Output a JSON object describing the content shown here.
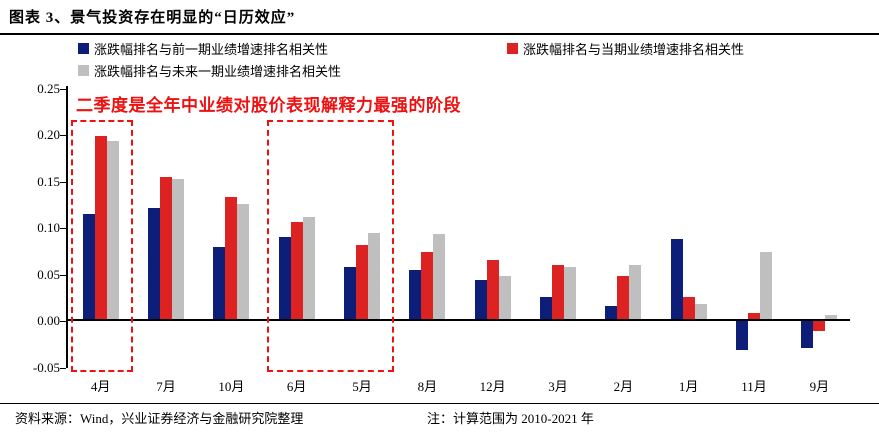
{
  "header": {
    "title": "图表 3、景气投资存在明显的“日历效应”"
  },
  "annotation": {
    "text": "二季度是全年中业绩对股价表现解释力最强的阶段",
    "color": "#ee1111"
  },
  "chart_data": {
    "type": "bar",
    "title": "景气投资存在明显的“日历效应”",
    "categories": [
      "4月",
      "7月",
      "10月",
      "6月",
      "5月",
      "8月",
      "12月",
      "3月",
      "2月",
      "1月",
      "11月",
      "9月"
    ],
    "series": [
      {
        "name": "涨跌幅排名与前一期业绩增速排名相关性",
        "color": "#0d1e78",
        "values": [
          0.115,
          0.121,
          0.08,
          0.09,
          0.058,
          0.055,
          0.044,
          0.026,
          0.016,
          0.088,
          -0.031,
          -0.029
        ]
      },
      {
        "name": "涨跌幅排名与当期业绩增速排名相关性",
        "color": "#dd2222",
        "values": [
          0.199,
          0.155,
          0.133,
          0.106,
          0.082,
          0.074,
          0.066,
          0.06,
          0.048,
          0.026,
          0.009,
          -0.011
        ]
      },
      {
        "name": "涨跌幅排名与未来一期业绩增速排名相关性",
        "color": "#bfbfbf",
        "values": [
          0.194,
          0.153,
          0.126,
          0.112,
          0.095,
          0.094,
          0.048,
          0.058,
          0.06,
          0.018,
          0.074,
          0.007
        ]
      }
    ],
    "xlabel": "",
    "ylabel": "",
    "ylim": [
      -0.05,
      0.25
    ],
    "ytick_labels": [
      "0.25",
      "0.20",
      "0.15",
      "0.10",
      "0.05",
      "0.00",
      "-0.05"
    ],
    "grid": false,
    "legend_position": "top",
    "highlight_color": "#ee1111",
    "highlight_boxes": [
      {
        "from_group": 0,
        "to_group": 0
      },
      {
        "from_group": 3,
        "to_group": 4
      }
    ]
  },
  "footer": {
    "source": "资料来源：Wind，兴业证券经济与金融研究院整理",
    "note": "注：计算范围为 2010-2021 年"
  }
}
